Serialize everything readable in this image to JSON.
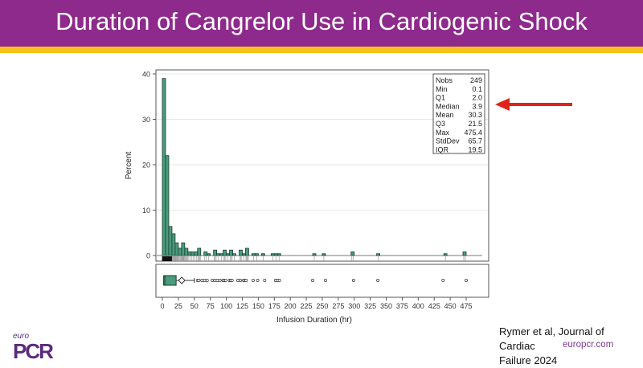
{
  "slide": {
    "title": "Duration of Cangrelor Use in Cardiogenic Shock",
    "citation_line1": "Rymer et al, Journal of Cardiac",
    "citation_line2": "Failure 2024",
    "website": "europcr.com",
    "logo_text": "euro PCR",
    "colors": {
      "header": "#8e2a8b",
      "band": "#f6c21a",
      "bar": "#4a9c7e",
      "arrow": "#e2231a"
    }
  },
  "chart_data": {
    "type": "bar",
    "subtype": "histogram-with-boxplot",
    "xlabel": "Infusion Duration (hr)",
    "ylabel": "Percent",
    "xlim": [
      0,
      495
    ],
    "ylim": [
      0,
      40
    ],
    "bin_width": 5,
    "x_ticks": [
      0,
      25,
      50,
      75,
      100,
      125,
      150,
      175,
      200,
      225,
      250,
      275,
      300,
      325,
      350,
      375,
      400,
      425,
      450,
      475
    ],
    "y_ticks": [
      0,
      10,
      20,
      30,
      40
    ],
    "grid": true,
    "bins": [
      {
        "start": 0,
        "percent": 39
      },
      {
        "start": 5,
        "percent": 22
      },
      {
        "start": 10,
        "percent": 6.4
      },
      {
        "start": 15,
        "percent": 4.8
      },
      {
        "start": 20,
        "percent": 2.8
      },
      {
        "start": 25,
        "percent": 1.6
      },
      {
        "start": 30,
        "percent": 2.8
      },
      {
        "start": 35,
        "percent": 1.6
      },
      {
        "start": 40,
        "percent": 0.8
      },
      {
        "start": 45,
        "percent": 0.8
      },
      {
        "start": 50,
        "percent": 0.8
      },
      {
        "start": 55,
        "percent": 1.6
      },
      {
        "start": 65,
        "percent": 0.8
      },
      {
        "start": 70,
        "percent": 0.4
      },
      {
        "start": 80,
        "percent": 1.2
      },
      {
        "start": 85,
        "percent": 0.4
      },
      {
        "start": 90,
        "percent": 0.4
      },
      {
        "start": 95,
        "percent": 1.2
      },
      {
        "start": 100,
        "percent": 0.4
      },
      {
        "start": 105,
        "percent": 1.2
      },
      {
        "start": 110,
        "percent": 0.4
      },
      {
        "start": 120,
        "percent": 1.2
      },
      {
        "start": 125,
        "percent": 0.4
      },
      {
        "start": 130,
        "percent": 1.6
      },
      {
        "start": 140,
        "percent": 0.4
      },
      {
        "start": 145,
        "percent": 0.4
      },
      {
        "start": 155,
        "percent": 0.4
      },
      {
        "start": 170,
        "percent": 0.4
      },
      {
        "start": 175,
        "percent": 0.4
      },
      {
        "start": 180,
        "percent": 0.4
      },
      {
        "start": 235,
        "percent": 0.4
      },
      {
        "start": 250,
        "percent": 0.4
      },
      {
        "start": 295,
        "percent": 0.8
      },
      {
        "start": 335,
        "percent": 0.4
      },
      {
        "start": 440,
        "percent": 0.4
      },
      {
        "start": 470,
        "percent": 0.8
      }
    ],
    "boxplot": {
      "min": 0.1,
      "q1": 2.0,
      "median": 3.9,
      "mean": 30.3,
      "q3": 21.5,
      "whisker_high": 50,
      "outliers": [
        55,
        57,
        62,
        66,
        70,
        78,
        82,
        86,
        90,
        95,
        97,
        99,
        105,
        107,
        109,
        118,
        122,
        127,
        129,
        131,
        142,
        149,
        160,
        177,
        180,
        183,
        235,
        255,
        299,
        337,
        439,
        475
      ]
    },
    "stats_table": [
      {
        "label": "Nobs",
        "value": "249"
      },
      {
        "label": "Min",
        "value": "0.1"
      },
      {
        "label": "Q1",
        "value": "2.0"
      },
      {
        "label": "Median",
        "value": "3.9"
      },
      {
        "label": "Mean",
        "value": "30.3"
      },
      {
        "label": "Q3",
        "value": "21.5"
      },
      {
        "label": "Max",
        "value": "475.4"
      },
      {
        "label": "StdDev",
        "value": "65.7"
      },
      {
        "label": "IQR",
        "value": "19.5"
      }
    ],
    "annotation": "red arrow pointing at Median"
  }
}
